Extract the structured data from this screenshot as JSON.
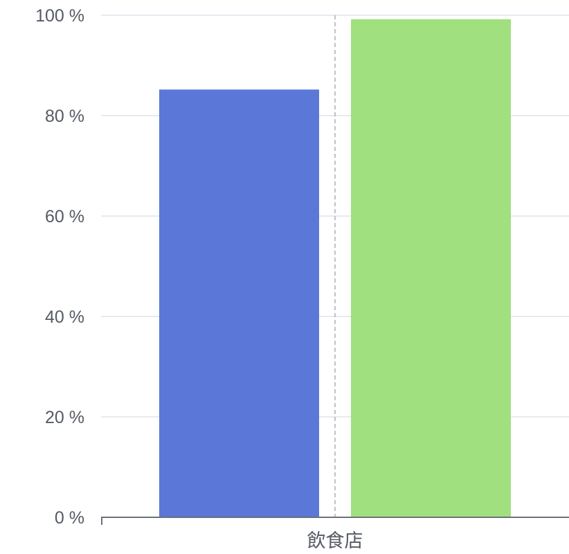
{
  "chart_data": {
    "type": "bar",
    "categories": [
      "飲食店"
    ],
    "series": [
      {
        "values": [
          85.2
        ],
        "color": "#5b78d8"
      },
      {
        "values": [
          99.2
        ],
        "color": "#a0e07e"
      }
    ],
    "ylim": [
      0,
      100
    ],
    "y_ticks": [
      0,
      20,
      40,
      60,
      80,
      100
    ],
    "y_tick_unit": " %",
    "xlabel": "",
    "ylabel": "",
    "grid": true,
    "axis_pointer": "shadow-dashed-line"
  }
}
